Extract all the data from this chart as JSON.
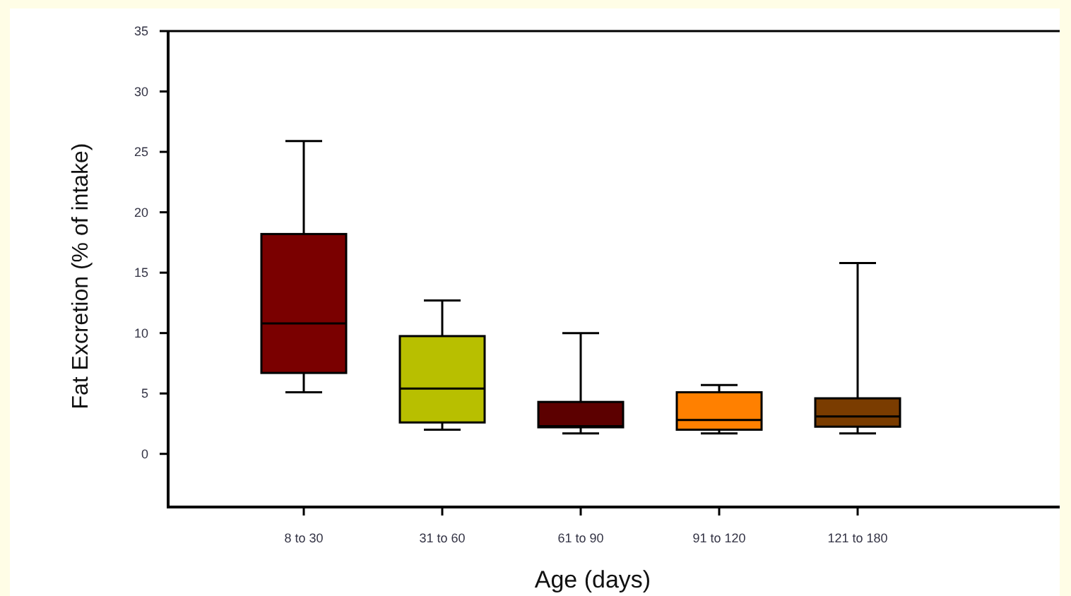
{
  "chart_data": {
    "type": "box",
    "xlabel": "Age (days)",
    "ylabel": "Fat Excretion (% of intake)",
    "categories": [
      "8 to 30",
      "31 to 60",
      "61 to 90",
      "91 to 120",
      "121 to 180"
    ],
    "colors": [
      "#7a0000",
      "#b8bf00",
      "#5c0000",
      "#ff8000",
      "#7a3c00"
    ],
    "boxes": [
      {
        "low": 5.1,
        "q1": 6.7,
        "median": 10.8,
        "q3": 18.2,
        "high": 25.9
      },
      {
        "low": 2.0,
        "q1": 2.6,
        "median": 5.4,
        "q3": 9.75,
        "high": 12.7
      },
      {
        "low": 1.7,
        "q1": 2.2,
        "median": 2.3,
        "q3": 4.3,
        "high": 10.0
      },
      {
        "low": 1.7,
        "q1": 2.0,
        "median": 2.8,
        "q3": 5.1,
        "high": 5.7
      },
      {
        "low": 1.7,
        "q1": 2.25,
        "median": 3.1,
        "q3": 4.6,
        "high": 15.8
      }
    ],
    "ylim": [
      -4.4,
      35
    ],
    "yticks": [
      0,
      5,
      10,
      15,
      20,
      25,
      30,
      35
    ]
  }
}
